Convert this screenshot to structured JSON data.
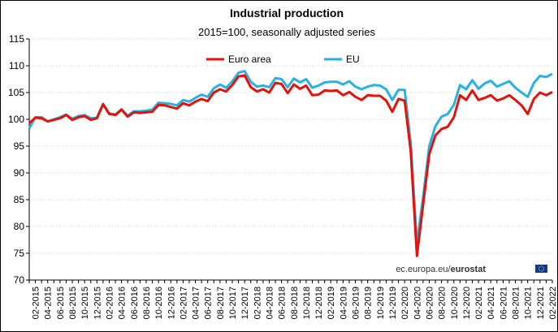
{
  "chart_data": {
    "type": "line",
    "title": "Industrial production",
    "subtitle": "2015=100, seasonally adjusted series",
    "xlabel": "",
    "ylabel": "",
    "ylim": [
      70,
      115
    ],
    "y_ticks": [
      70,
      75,
      80,
      85,
      90,
      95,
      100,
      105,
      110,
      115
    ],
    "grid": true,
    "legend_position": "top",
    "x_tick_labels": [
      "02-2015",
      "04-2015",
      "06-2015",
      "08-2015",
      "10-2015",
      "12-2015",
      "02-2016",
      "04-2016",
      "06-2016",
      "08-2016",
      "10-2016",
      "12-2016",
      "02-2017",
      "04-2017",
      "06-2017",
      "08-2017",
      "10-2017",
      "12-2017",
      "02-2018",
      "04-2018",
      "06-2018",
      "08-2018",
      "10-2018",
      "12-2018",
      "02-2019",
      "04-2019",
      "06-2019",
      "08-2019",
      "10-2019",
      "12-2019",
      "02-2020",
      "04-2020",
      "06-2020",
      "08-2020",
      "10-2020",
      "12-2020",
      "02-2021",
      "04-2021",
      "06-2021",
      "08-2021",
      "10-2021",
      "12-2021",
      "02-2022"
    ],
    "x": [
      "01-2015",
      "02-2015",
      "03-2015",
      "04-2015",
      "05-2015",
      "06-2015",
      "07-2015",
      "08-2015",
      "09-2015",
      "10-2015",
      "11-2015",
      "12-2015",
      "01-2016",
      "02-2016",
      "03-2016",
      "04-2016",
      "05-2016",
      "06-2016",
      "07-2016",
      "08-2016",
      "09-2016",
      "10-2016",
      "11-2016",
      "12-2016",
      "01-2017",
      "02-2017",
      "03-2017",
      "04-2017",
      "05-2017",
      "06-2017",
      "07-2017",
      "08-2017",
      "09-2017",
      "10-2017",
      "11-2017",
      "12-2017",
      "01-2018",
      "02-2018",
      "03-2018",
      "04-2018",
      "05-2018",
      "06-2018",
      "07-2018",
      "08-2018",
      "09-2018",
      "10-2018",
      "11-2018",
      "12-2018",
      "01-2019",
      "02-2019",
      "03-2019",
      "04-2019",
      "05-2019",
      "06-2019",
      "07-2019",
      "08-2019",
      "09-2019",
      "10-2019",
      "11-2019",
      "12-2019",
      "01-2020",
      "02-2020",
      "03-2020",
      "04-2020",
      "05-2020",
      "06-2020",
      "07-2020",
      "08-2020",
      "09-2020",
      "10-2020",
      "11-2020",
      "12-2020",
      "01-2021",
      "02-2021",
      "03-2021",
      "04-2021",
      "05-2021",
      "06-2021",
      "07-2021",
      "08-2021",
      "09-2021",
      "10-2021",
      "11-2021",
      "12-2021",
      "01-2022",
      "02-2022"
    ],
    "series": [
      {
        "name": "Euro area",
        "color": "#e3120b",
        "values": [
          99.3,
          100.3,
          100.2,
          99.6,
          99.9,
          100.2,
          100.8,
          99.9,
          100.4,
          100.6,
          99.9,
          100.2,
          102.8,
          101.0,
          100.8,
          101.8,
          100.5,
          101.3,
          101.2,
          101.3,
          101.4,
          102.7,
          102.6,
          102.3,
          102.0,
          103.0,
          102.6,
          103.3,
          103.8,
          103.4,
          105.0,
          105.6,
          105.2,
          106.4,
          108.0,
          108.2,
          106.0,
          105.2,
          105.6,
          105.0,
          106.8,
          106.6,
          104.9,
          106.5,
          105.7,
          106.3,
          104.5,
          104.6,
          105.4,
          105.3,
          105.4,
          104.5,
          105.1,
          104.2,
          103.6,
          104.5,
          104.4,
          104.4,
          103.5,
          101.4,
          103.8,
          103.5,
          94.0,
          74.5,
          84.0,
          93.5,
          97.0,
          98.2,
          98.6,
          100.4,
          104.5,
          103.6,
          105.4,
          103.6,
          104.0,
          104.5,
          103.5,
          103.9,
          104.5,
          103.6,
          102.6,
          101.0,
          103.8,
          105.0,
          104.5,
          105.1
        ]
      },
      {
        "name": "EU",
        "color": "#29b1e3",
        "values": [
          98.3,
          100.4,
          100.4,
          99.6,
          100.0,
          100.4,
          100.9,
          100.1,
          100.6,
          100.8,
          100.2,
          100.3,
          102.9,
          101.1,
          100.9,
          101.9,
          100.7,
          101.5,
          101.5,
          101.6,
          101.8,
          103.1,
          103.0,
          102.9,
          102.6,
          103.6,
          103.3,
          104.0,
          104.6,
          104.2,
          105.8,
          106.5,
          105.9,
          107.1,
          108.7,
          109.0,
          107.0,
          106.1,
          106.3,
          106.0,
          107.7,
          107.5,
          106.0,
          107.6,
          106.9,
          107.5,
          105.9,
          106.3,
          106.9,
          107.0,
          107.0,
          106.5,
          107.1,
          106.1,
          105.6,
          106.1,
          106.4,
          106.3,
          105.6,
          103.6,
          105.5,
          105.5,
          95.5,
          76.8,
          85.5,
          95.0,
          98.7,
          100.5,
          101.0,
          102.7,
          106.4,
          105.6,
          107.3,
          105.7,
          106.7,
          107.2,
          106.1,
          106.6,
          107.1,
          105.9,
          105.0,
          104.2,
          106.8,
          108.1,
          107.9,
          108.5
        ]
      }
    ],
    "source_text_regular": "ec.europa.eu/",
    "source_text_bold": "eurostat"
  }
}
